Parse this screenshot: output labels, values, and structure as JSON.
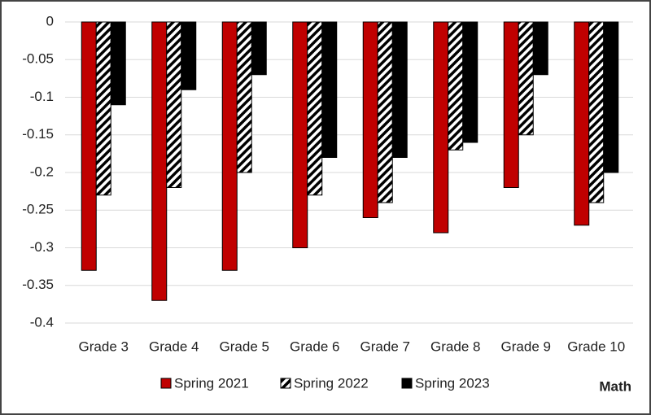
{
  "chart_data": {
    "type": "bar",
    "categories": [
      "Grade 3",
      "Grade 4",
      "Grade 5",
      "Grade 6",
      "Grade 7",
      "Grade 8",
      "Grade 9",
      "Grade 10"
    ],
    "series": [
      {
        "name": "Spring 2021",
        "color": "#c00000",
        "values": [
          -0.33,
          -0.37,
          -0.33,
          -0.3,
          -0.26,
          -0.28,
          -0.22,
          -0.27
        ]
      },
      {
        "name": "Spring 2022",
        "color": "#000000",
        "pattern": "hatch",
        "values": [
          -0.23,
          -0.22,
          -0.2,
          -0.23,
          -0.24,
          -0.17,
          -0.15,
          -0.24
        ]
      },
      {
        "name": "Spring 2023",
        "color": "#000000",
        "values": [
          -0.11,
          -0.09,
          -0.07,
          -0.18,
          -0.18,
          -0.16,
          -0.07,
          -0.2
        ]
      }
    ],
    "ylim": [
      -0.4,
      0
    ],
    "yticks": [
      0,
      -0.05,
      -0.1,
      -0.15,
      -0.2,
      -0.25,
      -0.3,
      -0.35,
      -0.4
    ],
    "grid": true,
    "legend": "bottom",
    "annotation": "Math"
  }
}
